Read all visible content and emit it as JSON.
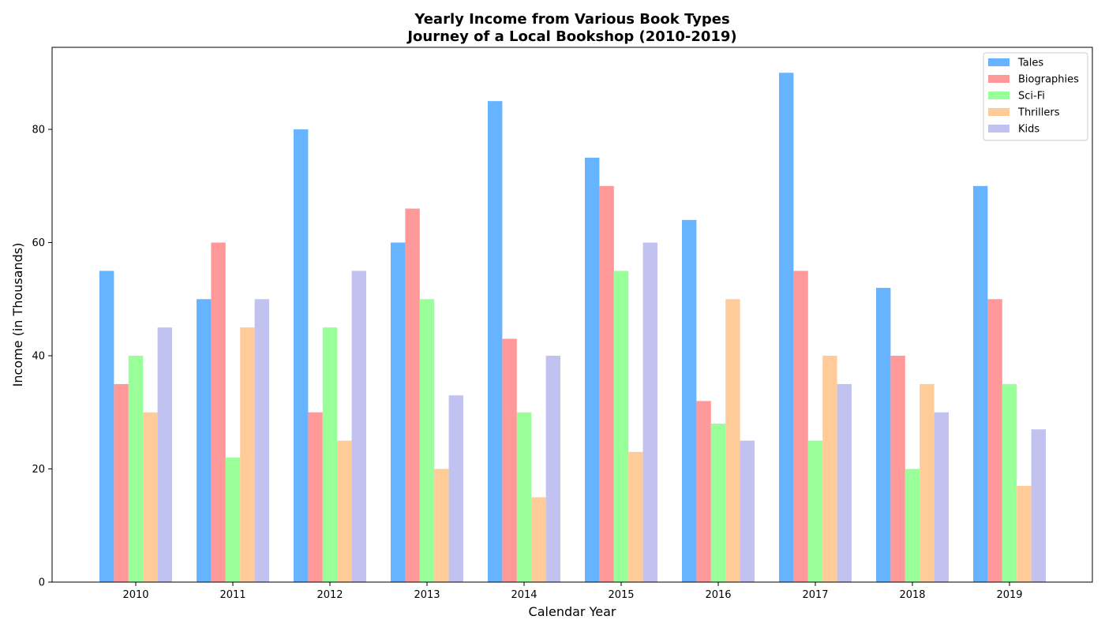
{
  "chart_data": {
    "type": "bar",
    "title_line1": "Yearly Income from Various Book Types",
    "title_line2": "Journey of a Local Bookshop (2010-2019)",
    "xlabel": "Calendar Year",
    "ylabel": "Income (in Thousands)",
    "ylim": [
      0,
      94.5
    ],
    "yticks": [
      0,
      20,
      40,
      60,
      80
    ],
    "grid": false,
    "legend_position": "top-right",
    "categories": [
      "2010",
      "2011",
      "2012",
      "2013",
      "2014",
      "2015",
      "2016",
      "2017",
      "2018",
      "2019"
    ],
    "series": [
      {
        "name": "Tales",
        "color": "#66b3ff",
        "values": [
          55,
          50,
          80,
          60,
          85,
          75,
          64,
          90,
          52,
          70
        ]
      },
      {
        "name": "Biographies",
        "color": "#ff9999",
        "values": [
          35,
          60,
          30,
          66,
          43,
          70,
          32,
          55,
          40,
          50
        ]
      },
      {
        "name": "Sci-Fi",
        "color": "#99ff99",
        "values": [
          40,
          22,
          45,
          50,
          30,
          55,
          28,
          25,
          20,
          35
        ]
      },
      {
        "name": "Thrillers",
        "color": "#ffcc99",
        "values": [
          30,
          45,
          25,
          20,
          15,
          23,
          50,
          40,
          35,
          17
        ]
      },
      {
        "name": "Kids",
        "color": "#c2c2f0",
        "values": [
          45,
          50,
          55,
          33,
          40,
          60,
          25,
          35,
          30,
          27
        ]
      }
    ]
  }
}
